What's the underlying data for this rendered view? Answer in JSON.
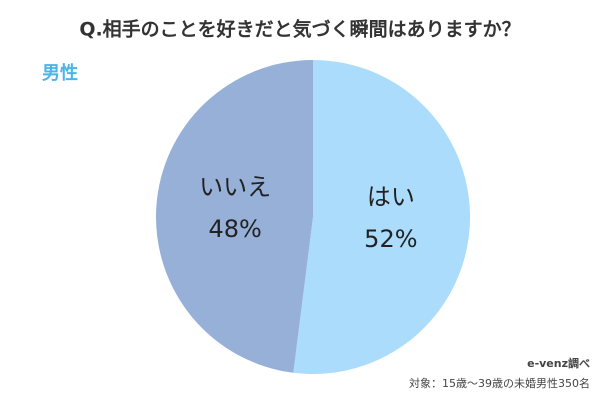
{
  "chart_data": {
    "type": "pie",
    "title": "Q.相手のことを好きだと気づく瞬間はありますか？",
    "subtitle": "男性",
    "categories": [
      "はい",
      "いいえ"
    ],
    "values": [
      52,
      48
    ],
    "value_labels": [
      "52%",
      "48%"
    ],
    "colors": [
      "#abdcfb",
      "#96b0d8"
    ],
    "notes": [
      "e-venz調べ",
      "対象：15歳〜39歳の未婚男性350名"
    ]
  }
}
